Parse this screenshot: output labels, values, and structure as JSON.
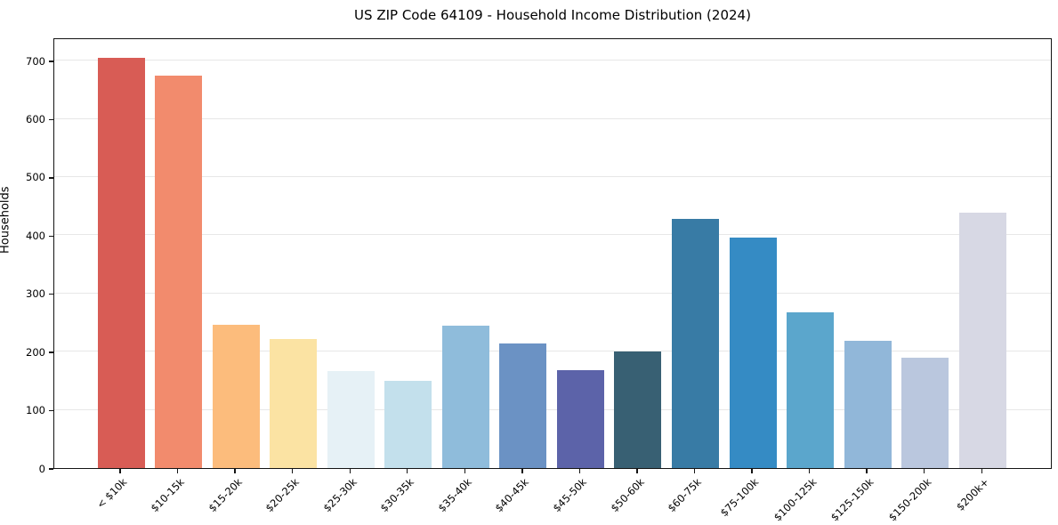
{
  "figure": {
    "title": "US ZIP Code 64109 - Household Income Distribution (2024)",
    "ylabel": "Households"
  },
  "chart_data": {
    "type": "bar",
    "title": "US ZIP Code 64109 - Household Income Distribution (2024)",
    "xlabel": "",
    "ylabel": "Households",
    "categories": [
      "< $10k",
      "$10-15k",
      "$15-20k",
      "$20-25k",
      "$25-30k",
      "$30-35k",
      "$35-40k",
      "$40-45k",
      "$45-50k",
      "$50-60k",
      "$60-75k",
      "$75-100k",
      "$100-125k",
      "$125-150k",
      "$150-200k",
      "$200k+"
    ],
    "values": [
      705,
      675,
      246,
      221,
      166,
      150,
      244,
      214,
      168,
      201,
      428,
      396,
      268,
      219,
      190,
      439
    ],
    "bar_colors": [
      "#d85c55",
      "#f28b6d",
      "#fcbc7c",
      "#fbe3a3",
      "#e6f1f6",
      "#c3e0ec",
      "#8fbcdb",
      "#6b92c4",
      "#5c63a9",
      "#386073",
      "#387ba5",
      "#358bc4",
      "#5ba6cc",
      "#91b7d9",
      "#bac7de",
      "#d7d8e4"
    ],
    "ylim": [
      0,
      740
    ],
    "yticks": [
      0,
      100,
      200,
      300,
      400,
      500,
      600,
      700
    ],
    "grid": "horizontal",
    "gridline_color": "#e7e7e7",
    "legend": "none",
    "background_color": "#ffffff",
    "spine_color": "#141414"
  }
}
